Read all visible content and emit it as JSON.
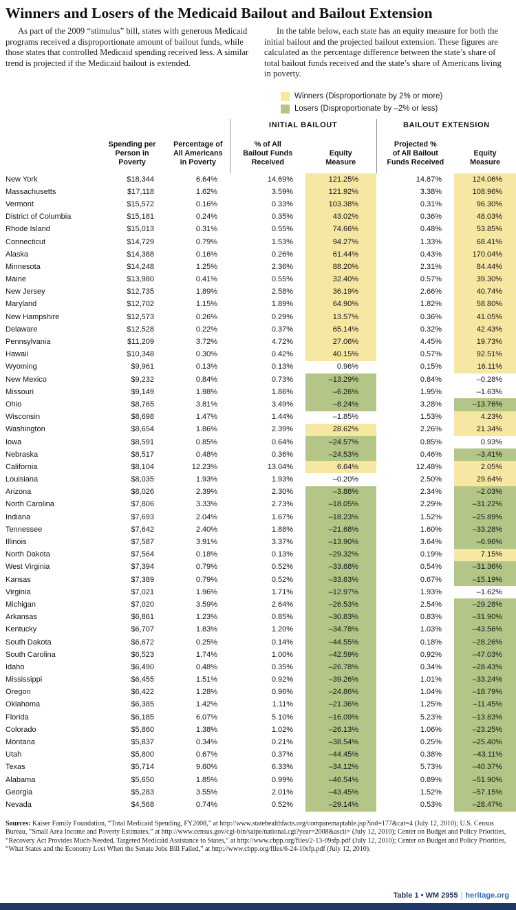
{
  "title": "Winners and Losers of the Medicaid Bailout and Bailout Extension",
  "intro": {
    "left": "As part of the 2009 “stimulus” bill, states with generous Medicaid programs received a disproportionate amount of bailout funds, while those states that controlled Medicaid spending received less. A similar trend is projected if the Medicaid bailout is extended.",
    "right": "In the table below, each state has an equity measure for both the initial bailout and the projected bailout extension. These figures are calculated as the percentage difference between the state’s share of total bailout funds received and the state’s share of Americans living in poverty."
  },
  "legend": {
    "winners_label": "Winners (Disproportionate by 2% or more)",
    "losers_label": "Losers (Disproportionate by –2% or less)",
    "winners_color": "#f6e7a2",
    "losers_color": "#b3c687"
  },
  "table": {
    "groups": [
      "INITIAL BAILOUT",
      "BAILOUT EXTENSION"
    ],
    "columns": [
      "",
      "Spending per\nPerson in\nPoverty",
      "Percentage of\nAll Americans\nin Poverty",
      "% of All\nBailout Funds\nReceived",
      "Equity\nMeasure",
      "Projected %\nof All Bailout\nFunds Received",
      "Equity\nMeasure"
    ],
    "rows": [
      [
        "New York",
        "$18,344",
        "6.64%",
        "14.69%",
        "121.25%",
        "14.87%",
        "124.06%"
      ],
      [
        "Massachusetts",
        "$17,118",
        "1.62%",
        "3.59%",
        "121.92%",
        "3.38%",
        "108.96%"
      ],
      [
        "Vermont",
        "$15,572",
        "0.16%",
        "0.33%",
        "103.38%",
        "0.31%",
        "96.30%"
      ],
      [
        "District of Columbia",
        "$15,181",
        "0.24%",
        "0.35%",
        "43.02%",
        "0.36%",
        "48.03%"
      ],
      [
        "Rhode Island",
        "$15,013",
        "0.31%",
        "0.55%",
        "74.66%",
        "0.48%",
        "53.85%"
      ],
      [
        "Connecticut",
        "$14,729",
        "0.79%",
        "1.53%",
        "94.27%",
        "1.33%",
        "68.41%"
      ],
      [
        "Alaska",
        "$14,388",
        "0.16%",
        "0.26%",
        "61.44%",
        "0.43%",
        "170.04%"
      ],
      [
        "Minnesota",
        "$14,248",
        "1.25%",
        "2.36%",
        "88.20%",
        "2.31%",
        "84.44%"
      ],
      [
        "Maine",
        "$13,980",
        "0.41%",
        "0.55%",
        "32.40%",
        "0.57%",
        "39.30%"
      ],
      [
        "New Jersey",
        "$12,735",
        "1.89%",
        "2.58%",
        "36.19%",
        "2.66%",
        "40.74%"
      ],
      [
        "Maryland",
        "$12,702",
        "1.15%",
        "1.89%",
        "64.90%",
        "1.82%",
        "58.80%"
      ],
      [
        "New Hampshire",
        "$12,573",
        "0.26%",
        "0.29%",
        "13.57%",
        "0.36%",
        "41.05%"
      ],
      [
        "Delaware",
        "$12,528",
        "0.22%",
        "0.37%",
        "65.14%",
        "0.32%",
        "42.43%"
      ],
      [
        "Pennsylvania",
        "$11,209",
        "3.72%",
        "4.72%",
        "27.06%",
        "4.45%",
        "19.73%"
      ],
      [
        "Hawaii",
        "$10,348",
        "0.30%",
        "0.42%",
        "40.15%",
        "0.57%",
        "92.51%"
      ],
      [
        "Wyoming",
        "$9,961",
        "0.13%",
        "0.13%",
        "0.96%",
        "0.15%",
        "16.11%"
      ],
      [
        "New Mexico",
        "$9,232",
        "0.84%",
        "0.73%",
        "–13.29%",
        "0.84%",
        "–0.28%"
      ],
      [
        "Missouri",
        "$9,149",
        "1.98%",
        "1.86%",
        "–6.26%",
        "1.95%",
        "–1.63%"
      ],
      [
        "Ohio",
        "$8,765",
        "3.81%",
        "3.49%",
        "–8.24%",
        "3.28%",
        "–13.76%"
      ],
      [
        "Wisconsin",
        "$8,698",
        "1.47%",
        "1.44%",
        "–1.85%",
        "1.53%",
        "4.23%"
      ],
      [
        "Washington",
        "$8,654",
        "1.86%",
        "2.39%",
        "28.62%",
        "2.26%",
        "21.34%"
      ],
      [
        "Iowa",
        "$8,591",
        "0.85%",
        "0.64%",
        "–24.57%",
        "0.85%",
        "0.93%"
      ],
      [
        "Nebraska",
        "$8,517",
        "0.48%",
        "0.36%",
        "–24.53%",
        "0.46%",
        "–3.41%"
      ],
      [
        "California",
        "$8,104",
        "12.23%",
        "13.04%",
        "6.64%",
        "12.48%",
        "2.05%"
      ],
      [
        "Louisiana",
        "$8,035",
        "1.93%",
        "1.93%",
        "–0.20%",
        "2.50%",
        "29.64%"
      ],
      [
        "Arizona",
        "$8,026",
        "2.39%",
        "2.30%",
        "–3.88%",
        "2.34%",
        "–2.03%"
      ],
      [
        "North Carolina",
        "$7,806",
        "3.33%",
        "2.73%",
        "–18.05%",
        "2.29%",
        "–31.22%"
      ],
      [
        "Indiana",
        "$7,693",
        "2.04%",
        "1.67%",
        "–18.23%",
        "1.52%",
        "–25.89%"
      ],
      [
        "Tennessee",
        "$7,642",
        "2.40%",
        "1.88%",
        "–21.68%",
        "1.60%",
        "–33.28%"
      ],
      [
        "Illinois",
        "$7,587",
        "3.91%",
        "3.37%",
        "–13.90%",
        "3.64%",
        "–6.96%"
      ],
      [
        "North Dakota",
        "$7,564",
        "0.18%",
        "0.13%",
        "–29.32%",
        "0.19%",
        "7.15%"
      ],
      [
        "West Virginia",
        "$7,394",
        "0.79%",
        "0.52%",
        "–33.68%",
        "0.54%",
        "–31.36%"
      ],
      [
        "Kansas",
        "$7,389",
        "0.79%",
        "0.52%",
        "–33.63%",
        "0.67%",
        "–15.19%"
      ],
      [
        "Virginia",
        "$7,021",
        "1.96%",
        "1.71%",
        "–12.97%",
        "1.93%",
        "–1.62%"
      ],
      [
        "Michigan",
        "$7,020",
        "3.59%",
        "2.64%",
        "–26.53%",
        "2.54%",
        "–29.28%"
      ],
      [
        "Arkansas",
        "$6,861",
        "1.23%",
        "0.85%",
        "–30.83%",
        "0.83%",
        "–31.90%"
      ],
      [
        "Kentucky",
        "$6,707",
        "1.83%",
        "1.20%",
        "–34.78%",
        "1.03%",
        "–43.56%"
      ],
      [
        "South Dakota",
        "$6,672",
        "0.25%",
        "0.14%",
        "–44.55%",
        "0.18%",
        "–28.26%"
      ],
      [
        "South Carolina",
        "$6,523",
        "1.74%",
        "1.00%",
        "–42.59%",
        "0.92%",
        "–47.03%"
      ],
      [
        "Idaho",
        "$6,490",
        "0.48%",
        "0.35%",
        "–26.78%",
        "0.34%",
        "–28.43%"
      ],
      [
        "Mississippi",
        "$6,455",
        "1.51%",
        "0.92%",
        "–39.26%",
        "1.01%",
        "–33.24%"
      ],
      [
        "Oregon",
        "$6,422",
        "1.28%",
        "0.96%",
        "–24.86%",
        "1.04%",
        "–18.79%"
      ],
      [
        "Oklahoma",
        "$6,385",
        "1.42%",
        "1.11%",
        "–21.36%",
        "1.25%",
        "–11.45%"
      ],
      [
        "Florida",
        "$6,185",
        "6.07%",
        "5.10%",
        "–16.09%",
        "5.23%",
        "–13.83%"
      ],
      [
        "Colorado",
        "$5,860",
        "1.38%",
        "1.02%",
        "–26.13%",
        "1.06%",
        "–23.25%"
      ],
      [
        "Montana",
        "$5,837",
        "0.34%",
        "0.21%",
        "–38.54%",
        "0.25%",
        "–25.40%"
      ],
      [
        "Utah",
        "$5,800",
        "0.67%",
        "0.37%",
        "–44.45%",
        "0.38%",
        "–43.11%"
      ],
      [
        "Texas",
        "$5,714",
        "9.60%",
        "6.33%",
        "–34.12%",
        "5.73%",
        "–40.37%"
      ],
      [
        "Alabama",
        "$5,650",
        "1.85%",
        "0.99%",
        "–46.54%",
        "0.89%",
        "–51.90%"
      ],
      [
        "Georgia",
        "$5,283",
        "3.55%",
        "2.01%",
        "–43.45%",
        "1.52%",
        "–57.15%"
      ],
      [
        "Nevada",
        "$4,568",
        "0.74%",
        "0.52%",
        "–29.14%",
        "0.53%",
        "–28.47%"
      ]
    ],
    "highlight_rule": {
      "winner_min": 2,
      "loser_max": -2
    }
  },
  "footer": {
    "sources_label": "Sources:",
    "sources_text": "Kaiser Family Foundation, “Total Medicaid Spending, FY2008,” at http://www.statehealthfacts.org/comparemaptable.jsp?ind=177&cat=4 (July 12, 2010); U.S. Census Bureau, “Small Area Income and Poverty Estimates,” at http://www.census.gov/cgi-bin/saipe/national.cgi?year=2008&ascii= (July 12, 2010); Center on Budget and Policy Priorities, “Recovery Act Provides Much-Needed, Targeted Medicaid Assistance to States,” at http://www.cbpp.org/files/2-13-09sfp.pdf (July 12, 2010); Center on Budget and Policy Priorities, “What States and the Economy Lost When the Senate Jobs Bill Failed,” at http://www.cbpp.org/files/6-24-10sfp.pdf (July 12, 2010).",
    "table_ref": "Table 1  •  WM 2955",
    "site": "heritage.org"
  }
}
